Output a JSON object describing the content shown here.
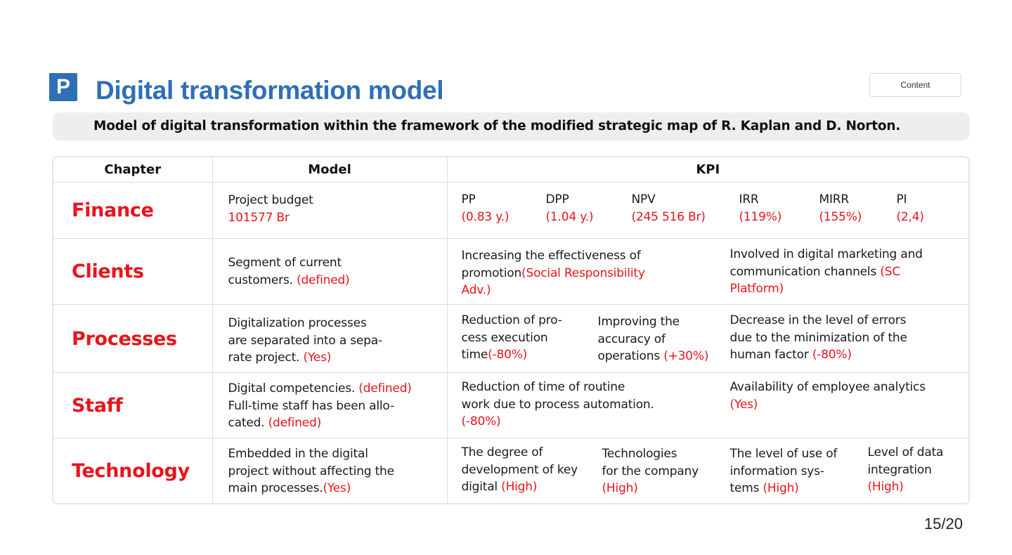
{
  "header": {
    "logo_letter": "P",
    "title": "Digital transformation model",
    "content_button": "Content",
    "subtitle": "Model of digital transformation within the framework of the modified strategic map of R. Kaplan and D. Norton."
  },
  "table": {
    "columns": [
      "Chapter",
      "Model",
      "KPI"
    ],
    "finance": {
      "chapter": "Finance",
      "model_text": "Project budget",
      "model_value": "101577 Br",
      "kpis": [
        {
          "label": "PP",
          "value": "(0.83 y.)"
        },
        {
          "label": "DPP",
          "value": "(1.04 y.)"
        },
        {
          "label": "NPV",
          "value": "(245 516 Br)"
        },
        {
          "label": "IRR",
          "value": "(119%)"
        },
        {
          "label": "MIRR",
          "value": "(155%)"
        },
        {
          "label": "PI",
          "value": "(2,4)"
        }
      ]
    },
    "clients": {
      "chapter": "Clients",
      "model_line1": "Segment of current",
      "model_line2": "customers. ",
      "model_value": "(defined)",
      "kpi1_line1": "Increasing the effectiveness of",
      "kpi1_line2": "promotion",
      "kpi1_value_line2": "(Social Responsibility",
      "kpi1_value_line3": "Adv.)",
      "kpi2_line1": "Involved in digital marketing and",
      "kpi2_line2": "communication channels ",
      "kpi2_value_line2": "(SC",
      "kpi2_value_line3": "Platform)"
    },
    "processes": {
      "chapter": "Processes",
      "model_line1": "Digitalization processes",
      "model_line2": "are separated into a sepa-",
      "model_line3": "rate project. ",
      "model_value": "(Yes)",
      "kpi1_line1": "Reduction of pro-",
      "kpi1_line2": "cess execution",
      "kpi1_line3": "time",
      "kpi1_value": "(-80%)",
      "kpi2_line1": "Improving the",
      "kpi2_line2": "accuracy of",
      "kpi2_line3": "operations ",
      "kpi2_value": "(+30%)",
      "kpi3_line1": "Decrease in the level of errors",
      "kpi3_line2": "due to the minimization of the",
      "kpi3_line3": "human factor ",
      "kpi3_value": "(-80%)"
    },
    "staff": {
      "chapter": "Staff",
      "model_line1": "Digital competencies. ",
      "model_value1": "(defined)",
      "model_line2": "Full-time staff has been allo-",
      "model_line3": "cated. ",
      "model_value2": "(defined)",
      "kpi1_line1": "Reduction of time of routine",
      "kpi1_line2": "work due to process automation.",
      "kpi1_value": "(-80%)",
      "kpi2_line1": "Availability of employee analytics",
      "kpi2_value": "(Yes)"
    },
    "technology": {
      "chapter": "Technology",
      "model_line1": "Embedded in the digital",
      "model_line2": "project without affecting the",
      "model_line3": "main processes.",
      "model_value": "(Yes)",
      "kpi1_line1": "The degree of",
      "kpi1_line2": "development of key",
      "kpi1_line3": "digital ",
      "kpi1_value": "(High)",
      "kpi2_line1": "Technologies",
      "kpi2_line2": "for the company",
      "kpi2_value": "(High)",
      "kpi3_line1": "The level of use of",
      "kpi3_line2": "information sys-",
      "kpi3_line3": "tems ",
      "kpi3_value": "(High)",
      "kpi4_line1": "Level of data",
      "kpi4_line2": "integration",
      "kpi4_value": "(High)"
    }
  },
  "footer": {
    "page_number": "15/20"
  },
  "colors": {
    "accent_blue": "#2f6fb6",
    "highlight_red": "#e8141c"
  }
}
